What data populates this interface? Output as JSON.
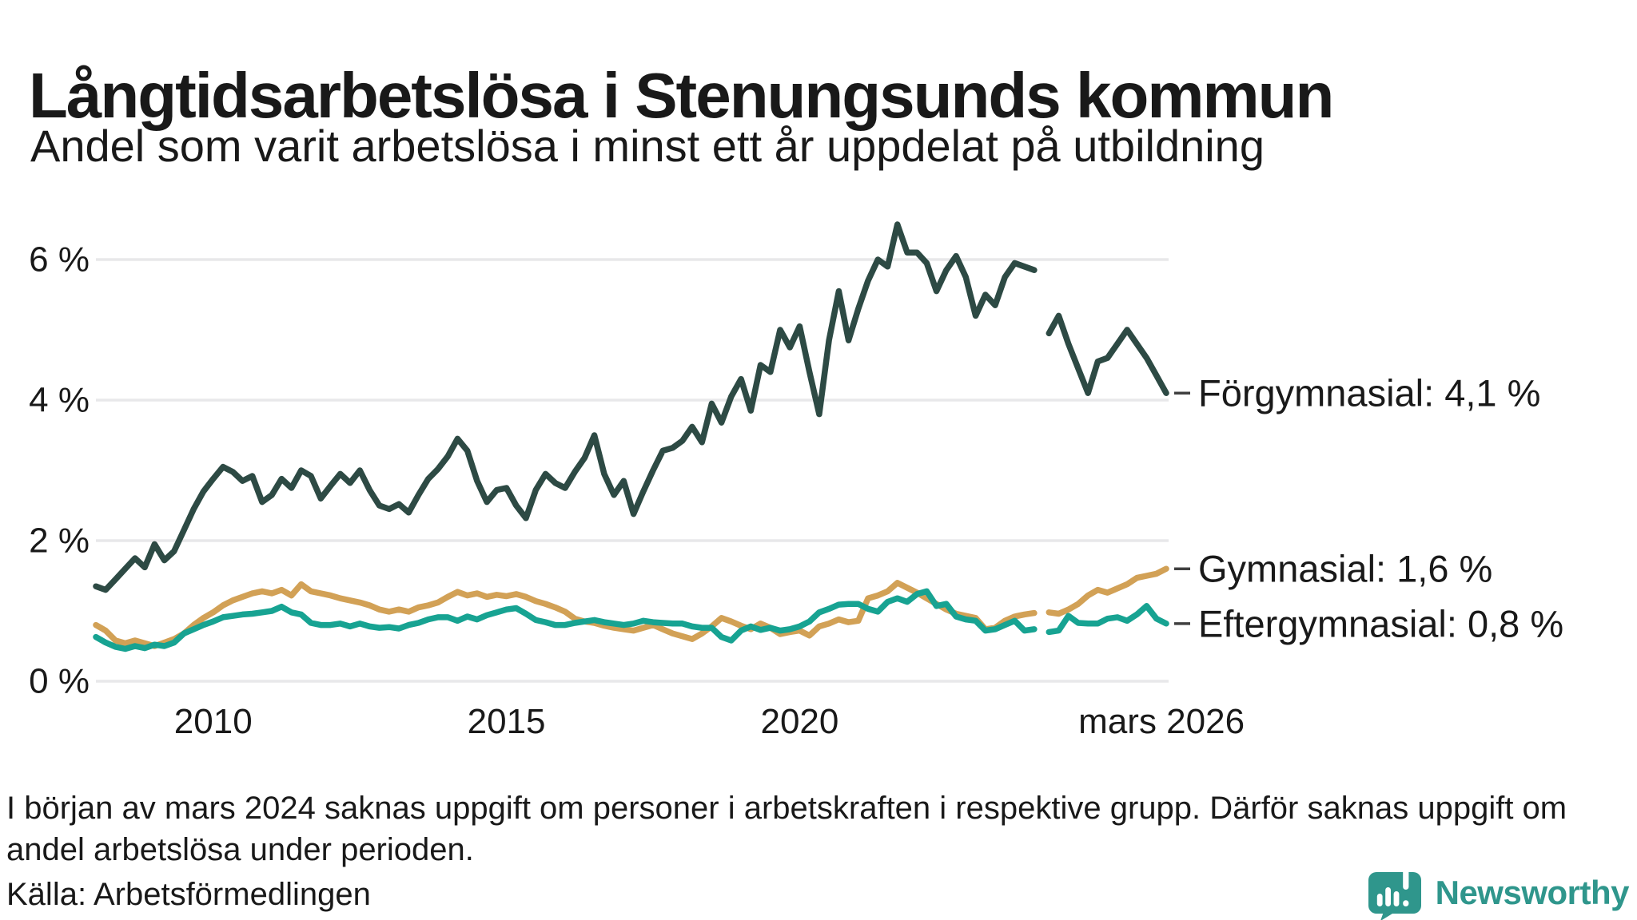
{
  "chart_data": {
    "type": "line",
    "title": "Långtidsarbetslösa i Stenungsunds kommun",
    "subtitle": "Andel som varit arbetslösa i minst ett år uppdelat på utbildning",
    "xlabel": "",
    "ylabel": "",
    "y_unit": "%",
    "grid": true,
    "grid_color": "#e8e8ea",
    "axis_text_color": "#191919",
    "x_domain": [
      2008.0,
      2026.25
    ],
    "ylim": [
      0,
      6.6
    ],
    "y_ticks": [
      {
        "v": 0,
        "label": "0 %"
      },
      {
        "v": 2,
        "label": "2 %"
      },
      {
        "v": 4,
        "label": "4 %"
      },
      {
        "v": 6,
        "label": "6 %"
      }
    ],
    "x_ticks": [
      {
        "t": 2010,
        "label": "2010"
      },
      {
        "t": 2015,
        "label": "2015"
      },
      {
        "t": 2020,
        "label": "2020"
      },
      {
        "t": 2026.17,
        "label": "mars 2026"
      }
    ],
    "legend_position": "right-of-line-end",
    "data_gap": "dec 2023 – mars 2024 (inga värden)",
    "series": [
      {
        "id": "forgymnasial",
        "name": "Förgymnasial",
        "legend": "Förgymnasial: 4,1 %",
        "end_value": "4,1 %",
        "color": "#2d4a44",
        "segments": [
          {
            "t0": 2008.0,
            "dt_years": 0.166667,
            "values": [
              1.35,
              1.3,
              1.45,
              1.6,
              1.75,
              1.62,
              1.95,
              1.72,
              1.85,
              2.15,
              2.45,
              2.7,
              2.88,
              3.05,
              2.98,
              2.85,
              2.92,
              2.55,
              2.65,
              2.88,
              2.75,
              3.0,
              2.92,
              2.6,
              2.78,
              2.95,
              2.82,
              3.0,
              2.72,
              2.5,
              2.45,
              2.52,
              2.4,
              2.65,
              2.88,
              3.02,
              3.2,
              3.45,
              3.28,
              2.85,
              2.55,
              2.72,
              2.75,
              2.5,
              2.32,
              2.72,
              2.95,
              2.82,
              2.75,
              2.98,
              3.18,
              3.5,
              2.95,
              2.65,
              2.85,
              2.38,
              2.7,
              3.0,
              3.28,
              3.32,
              3.42,
              3.62,
              3.4,
              3.95,
              3.68,
              4.05,
              4.3,
              3.85,
              4.5,
              4.4,
              5.0,
              4.75,
              5.05,
              4.4,
              3.8,
              4.85,
              5.55,
              4.85,
              5.3,
              5.7,
              6.0,
              5.9,
              6.5,
              6.1,
              6.1,
              5.95,
              5.55,
              5.85,
              6.05,
              5.75,
              5.2,
              5.5,
              5.35,
              5.75,
              5.95,
              5.9,
              5.85
            ]
          },
          {
            "t0": 2024.25,
            "dt_years": 0.166667,
            "values": [
              4.95,
              5.2,
              4.8,
              4.45,
              4.1,
              4.55,
              4.6,
              4.8,
              5.0,
              4.8,
              4.6,
              4.35,
              4.1
            ]
          }
        ]
      },
      {
        "id": "gymnasial",
        "name": "Gymnasial",
        "legend": "Gymnasial: 1,6 %",
        "end_value": "1,6 %",
        "color": "#d2a156",
        "segments": [
          {
            "t0": 2008.0,
            "dt_years": 0.166667,
            "values": [
              0.8,
              0.72,
              0.58,
              0.54,
              0.58,
              0.54,
              0.5,
              0.55,
              0.6,
              0.68,
              0.8,
              0.9,
              0.98,
              1.08,
              1.15,
              1.2,
              1.25,
              1.28,
              1.25,
              1.3,
              1.22,
              1.38,
              1.28,
              1.25,
              1.22,
              1.18,
              1.15,
              1.12,
              1.08,
              1.02,
              0.99,
              1.02,
              0.99,
              1.05,
              1.08,
              1.12,
              1.2,
              1.27,
              1.22,
              1.25,
              1.2,
              1.23,
              1.21,
              1.24,
              1.2,
              1.14,
              1.1,
              1.05,
              0.99,
              0.89,
              0.85,
              0.83,
              0.79,
              0.76,
              0.74,
              0.72,
              0.76,
              0.8,
              0.74,
              0.68,
              0.64,
              0.6,
              0.68,
              0.78,
              0.9,
              0.85,
              0.79,
              0.74,
              0.82,
              0.76,
              0.67,
              0.7,
              0.72,
              0.65,
              0.78,
              0.82,
              0.88,
              0.84,
              0.86,
              1.18,
              1.22,
              1.28,
              1.4,
              1.33,
              1.26,
              1.18,
              1.1,
              1.02,
              0.96,
              0.93,
              0.9,
              0.74,
              0.76,
              0.86,
              0.92,
              0.95,
              0.97
            ]
          },
          {
            "t0": 2024.25,
            "dt_years": 0.166667,
            "values": [
              0.98,
              0.96,
              1.02,
              1.1,
              1.22,
              1.3,
              1.26,
              1.32,
              1.38,
              1.47,
              1.5,
              1.53,
              1.6
            ]
          }
        ]
      },
      {
        "id": "eftergymnasial",
        "name": "Eftergymnasial",
        "legend": "Eftergymnasial: 0,8 %",
        "end_value": "0,8 %",
        "color": "#17a392",
        "segments": [
          {
            "t0": 2008.0,
            "dt_years": 0.166667,
            "values": [
              0.63,
              0.55,
              0.49,
              0.46,
              0.5,
              0.47,
              0.52,
              0.5,
              0.55,
              0.68,
              0.74,
              0.8,
              0.85,
              0.91,
              0.93,
              0.95,
              0.96,
              0.98,
              1.0,
              1.06,
              0.98,
              0.95,
              0.83,
              0.8,
              0.8,
              0.82,
              0.78,
              0.82,
              0.78,
              0.76,
              0.77,
              0.75,
              0.8,
              0.83,
              0.88,
              0.91,
              0.91,
              0.86,
              0.92,
              0.88,
              0.94,
              0.98,
              1.02,
              1.04,
              0.96,
              0.87,
              0.84,
              0.8,
              0.8,
              0.83,
              0.85,
              0.87,
              0.84,
              0.82,
              0.8,
              0.82,
              0.86,
              0.84,
              0.83,
              0.82,
              0.82,
              0.78,
              0.76,
              0.76,
              0.63,
              0.58,
              0.72,
              0.78,
              0.73,
              0.76,
              0.72,
              0.74,
              0.78,
              0.85,
              0.98,
              1.03,
              1.09,
              1.1,
              1.1,
              1.03,
              0.99,
              1.13,
              1.18,
              1.13,
              1.24,
              1.28,
              1.07,
              1.1,
              0.92,
              0.88,
              0.86,
              0.72,
              0.74,
              0.8,
              0.86,
              0.72,
              0.74
            ]
          },
          {
            "t0": 2024.25,
            "dt_years": 0.166667,
            "values": [
              0.7,
              0.72,
              0.93,
              0.83,
              0.82,
              0.82,
              0.89,
              0.91,
              0.86,
              0.95,
              1.07,
              0.89,
              0.82
            ]
          }
        ]
      }
    ]
  },
  "footnote_lines": [
    "I början av mars 2024 saknas uppgift om personer i arbetskraften i respektive grupp. Därför saknas uppgift om",
    "andel arbetslösa under perioden."
  ],
  "source": "Källa: Arbetsförmedlingen",
  "brand": {
    "name": "Newsworthy",
    "color": "#2f968c"
  }
}
